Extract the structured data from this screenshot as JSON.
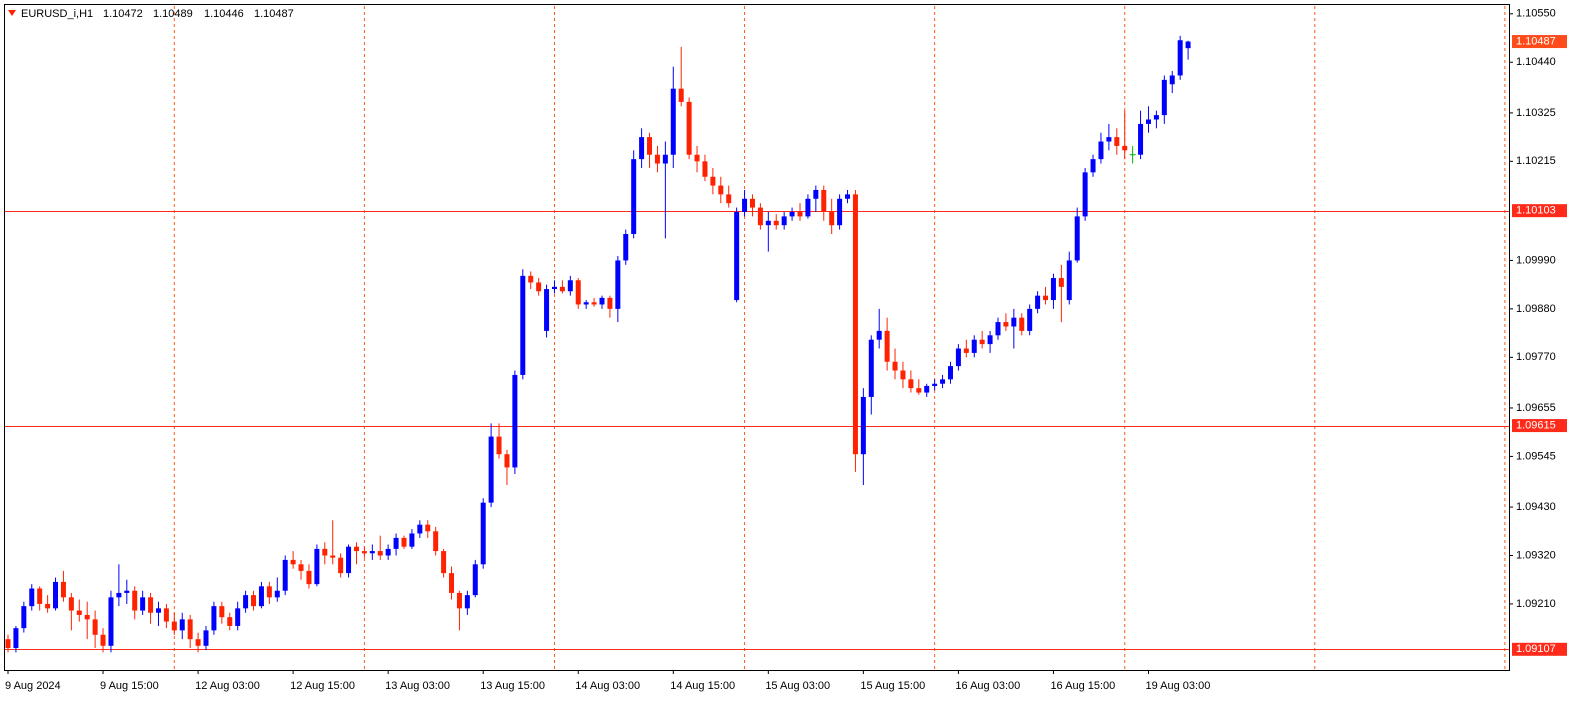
{
  "chart_data": {
    "type": "candlestick",
    "symbol": "EURUSD_i,H1",
    "categories": [
      "9 Aug 2024",
      null,
      null,
      null,
      null,
      null,
      null,
      null,
      null,
      null,
      null,
      null,
      "9 Aug 15:00",
      null,
      null,
      null,
      null,
      null,
      null,
      null,
      null,
      null,
      null,
      null,
      "12 Aug 03:00",
      null,
      null,
      null,
      null,
      null,
      null,
      null,
      null,
      null,
      null,
      null,
      "12 Aug 15:00",
      null,
      null,
      null,
      null,
      null,
      null,
      null,
      null,
      null,
      null,
      null,
      "13 Aug 03:00",
      null,
      null,
      null,
      null,
      null,
      null,
      null,
      null,
      null,
      null,
      null,
      "13 Aug 15:00",
      null,
      null,
      null,
      null,
      null,
      null,
      null,
      null,
      null,
      null,
      null,
      "14 Aug 03:00",
      null,
      null,
      null,
      null,
      null,
      null,
      null,
      null,
      null,
      null,
      null,
      "14 Aug 15:00",
      null,
      null,
      null,
      null,
      null,
      null,
      null,
      null,
      null,
      null,
      null,
      "15 Aug 03:00",
      null,
      null,
      null,
      null,
      null,
      null,
      null,
      null,
      null,
      null,
      null,
      "15 Aug 15:00",
      null,
      null,
      null,
      null,
      null,
      null,
      null,
      null,
      null,
      null,
      null,
      "16 Aug 03:00",
      null,
      null,
      null,
      null,
      null,
      null,
      null,
      null,
      null,
      null,
      null,
      "16 Aug 15:00",
      null,
      null,
      null,
      null,
      null,
      null,
      null,
      null,
      null,
      null,
      null,
      "19 Aug 03:00",
      null,
      null,
      null,
      null,
      null
    ],
    "open": [
      1.0913,
      1.0911,
      1.09155,
      1.09205,
      1.09245,
      1.0921,
      1.092,
      1.0926,
      1.09225,
      1.09195,
      1.09185,
      1.09175,
      1.0914,
      1.09115,
      1.09225,
      1.09235,
      1.0924,
      1.09195,
      1.09225,
      1.0919,
      1.092,
      1.0917,
      1.0915,
      1.09175,
      1.0913,
      1.09115,
      1.0915,
      1.09205,
      1.0918,
      1.0916,
      1.092,
      1.0923,
      1.09205,
      1.0925,
      1.09225,
      1.0924,
      1.0931,
      1.093,
      1.09285,
      1.09255,
      1.09335,
      1.0932,
      1.09315,
      1.0928,
      1.0934,
      1.0933,
      1.09325,
      1.0933,
      1.0932,
      1.09335,
      1.0936,
      1.0934,
      1.0937,
      1.0939,
      1.09375,
      1.0933,
      1.0928,
      1.09235,
      1.092,
      1.0923,
      1.093,
      1.0944,
      1.0959,
      1.0955,
      1.0952,
      1.0973,
      1.09955,
      1.0994,
      1.0983,
      1.09925,
      1.0993,
      1.0992,
      1.09945,
      1.0989,
      1.09895,
      1.0989,
      1.09905,
      1.0988,
      1.0999,
      1.1005,
      1.1022,
      1.1027,
      1.1023,
      1.1021,
      1.1023,
      1.1038,
      1.1035,
      1.1023,
      1.10215,
      1.1018,
      1.1016,
      1.1014,
      1.099,
      1.101,
      1.1013,
      1.1011,
      1.1007,
      1.1008,
      1.1007,
      1.1009,
      1.101,
      1.1009,
      1.1013,
      1.1015,
      1.101,
      1.1007,
      1.1013,
      1.1014,
      1.0955,
      1.0968,
      1.0981,
      1.0983,
      1.0976,
      1.0974,
      1.0972,
      1.097,
      1.0969,
      1.09705,
      1.0971,
      1.0972,
      1.0975,
      1.0979,
      1.0978,
      1.0981,
      1.098,
      1.0982,
      1.0985,
      1.0984,
      1.0986,
      1.0983,
      1.0988,
      1.0991,
      1.099,
      1.0995,
      1.099,
      1.0999,
      1.1009,
      1.1019,
      1.1022,
      1.1026,
      1.1027,
      1.1025,
      1.1023,
      1.1023,
      1.103,
      1.1031,
      1.1032,
      1.1039,
      1.1041,
      1.10472
    ],
    "high": [
      1.0914,
      1.0916,
      1.09215,
      1.09255,
      1.0925,
      1.0923,
      1.0927,
      1.09285,
      1.09235,
      1.0922,
      1.09215,
      1.09195,
      1.09155,
      1.0924,
      1.093,
      1.09265,
      1.0925,
      1.0924,
      1.09235,
      1.09215,
      1.0921,
      1.0919,
      1.0919,
      1.09185,
      1.09145,
      1.0916,
      1.09215,
      1.09215,
      1.0919,
      1.09215,
      1.0924,
      1.0924,
      1.0926,
      1.0926,
      1.0927,
      1.0932,
      1.0933,
      1.0931,
      1.093,
      1.09345,
      1.0935,
      1.094,
      1.09325,
      1.09345,
      1.0935,
      1.0934,
      1.09345,
      1.09365,
      1.09345,
      1.0937,
      1.09365,
      1.0938,
      1.094,
      1.094,
      1.09385,
      1.09335,
      1.09295,
      1.0924,
      1.0924,
      1.0931,
      1.0945,
      1.0962,
      1.0962,
      1.0956,
      1.0974,
      1.0997,
      1.09965,
      1.0995,
      1.09935,
      1.09945,
      1.09945,
      1.09955,
      1.0995,
      1.099,
      1.09905,
      1.0991,
      1.0991,
      1.1,
      1.1006,
      1.1024,
      1.1029,
      1.1028,
      1.1025,
      1.1026,
      1.1043,
      1.10475,
      1.1036,
      1.1025,
      1.1023,
      1.102,
      1.1018,
      1.1016,
      1.1011,
      1.1015,
      1.1014,
      1.1012,
      1.101,
      1.10095,
      1.101,
      1.1011,
      1.1012,
      1.1014,
      1.1016,
      1.1016,
      1.1013,
      1.1014,
      1.1015,
      1.1015,
      1.097,
      1.0982,
      1.0988,
      1.0986,
      1.0979,
      1.0976,
      1.0974,
      1.0972,
      1.0971,
      1.0972,
      1.0973,
      1.0976,
      1.098,
      1.0981,
      1.0982,
      1.0983,
      1.0983,
      1.0986,
      1.0987,
      1.0988,
      1.0987,
      1.0989,
      1.0992,
      1.0993,
      1.0996,
      1.0998,
      1.1001,
      1.1011,
      1.102,
      1.1023,
      1.1028,
      1.103,
      1.1029,
      1.1033,
      1.1025,
      1.1033,
      1.1034,
      1.1033,
      1.1041,
      1.1042,
      1.105,
      1.10489
    ],
    "low": [
      1.091,
      1.091,
      1.09145,
      1.09195,
      1.09195,
      1.0919,
      1.09195,
      1.09215,
      1.0915,
      1.0917,
      1.0913,
      1.0911,
      1.091,
      1.091,
      1.09205,
      1.0921,
      1.09175,
      1.09185,
      1.09165,
      1.0916,
      1.09155,
      1.0914,
      1.0913,
      1.0911,
      1.091,
      1.09105,
      1.0914,
      1.09165,
      1.0915,
      1.0915,
      1.0919,
      1.09195,
      1.092,
      1.0921,
      1.09215,
      1.0923,
      1.0929,
      1.09265,
      1.09245,
      1.0925,
      1.093,
      1.093,
      1.0927,
      1.0927,
      1.093,
      1.09315,
      1.0931,
      1.0931,
      1.0931,
      1.0932,
      1.09335,
      1.09335,
      1.0936,
      1.0936,
      1.0932,
      1.0927,
      1.0922,
      1.0915,
      1.09185,
      1.09225,
      1.0929,
      1.0943,
      1.0954,
      1.0948,
      1.09505,
      1.0972,
      1.09925,
      1.0991,
      1.09815,
      1.09915,
      1.09915,
      1.0991,
      1.0988,
      1.0988,
      1.09885,
      1.0988,
      1.0986,
      1.0985,
      1.0998,
      1.1004,
      1.102,
      1.102,
      1.1019,
      1.1004,
      1.102,
      1.1034,
      1.1022,
      1.1019,
      1.1017,
      1.1014,
      1.1012,
      1.1011,
      1.09895,
      1.1009,
      1.1009,
      1.1006,
      1.1001,
      1.1006,
      1.1006,
      1.1008,
      1.1008,
      1.10085,
      1.101,
      1.1008,
      1.1005,
      1.1006,
      1.1012,
      1.0951,
      1.0948,
      1.0964,
      1.0979,
      1.0974,
      1.0972,
      1.097,
      1.0969,
      1.09685,
      1.0968,
      1.09695,
      1.097,
      1.0971,
      1.0974,
      1.0977,
      1.0977,
      1.0979,
      1.0978,
      1.0981,
      1.0983,
      1.0979,
      1.0982,
      1.0982,
      1.0987,
      1.0989,
      1.0988,
      1.0985,
      1.0989,
      1.09985,
      1.1008,
      1.1018,
      1.1021,
      1.1024,
      1.1023,
      1.1022,
      1.1021,
      1.1022,
      1.1028,
      1.1029,
      1.103,
      1.1037,
      1.104,
      1.10446
    ],
    "close": [
      1.0911,
      1.09155,
      1.09205,
      1.09245,
      1.0921,
      1.092,
      1.0926,
      1.09225,
      1.09195,
      1.09185,
      1.09175,
      1.0914,
      1.09115,
      1.09225,
      1.09235,
      1.0924,
      1.09195,
      1.09225,
      1.0919,
      1.092,
      1.0917,
      1.0915,
      1.09175,
      1.0913,
      1.09115,
      1.0915,
      1.09205,
      1.0918,
      1.0916,
      1.092,
      1.0923,
      1.09205,
      1.0925,
      1.09225,
      1.0924,
      1.0931,
      1.093,
      1.09285,
      1.09255,
      1.09335,
      1.0932,
      1.09315,
      1.0928,
      1.0934,
      1.0933,
      1.09325,
      1.0933,
      1.0932,
      1.09335,
      1.0936,
      1.0934,
      1.0937,
      1.0939,
      1.09375,
      1.0933,
      1.0928,
      1.09235,
      1.092,
      1.0923,
      1.093,
      1.0944,
      1.0959,
      1.0955,
      1.0952,
      1.0973,
      1.09955,
      1.0994,
      1.0992,
      1.09925,
      1.0993,
      1.0992,
      1.09945,
      1.0989,
      1.09895,
      1.0989,
      1.09905,
      1.0988,
      1.0999,
      1.1005,
      1.1022,
      1.1027,
      1.1023,
      1.1021,
      1.1023,
      1.1038,
      1.1035,
      1.1023,
      1.10215,
      1.1018,
      1.1016,
      1.1014,
      1.1012,
      1.101,
      1.1013,
      1.1011,
      1.1007,
      1.1008,
      1.1007,
      1.1009,
      1.101,
      1.1009,
      1.1013,
      1.1015,
      1.101,
      1.1007,
      1.1013,
      1.1014,
      1.0955,
      1.0968,
      1.0981,
      1.0983,
      1.0976,
      1.0974,
      1.0972,
      1.097,
      1.0969,
      1.09705,
      1.0971,
      1.0972,
      1.0975,
      1.0979,
      1.0978,
      1.0981,
      1.098,
      1.0982,
      1.0985,
      1.0984,
      1.0986,
      1.0983,
      1.0988,
      1.0991,
      1.099,
      1.0995,
      1.0993,
      1.0999,
      1.1009,
      1.1019,
      1.1022,
      1.1026,
      1.1027,
      1.1025,
      1.1024,
      1.1023,
      1.103,
      1.1031,
      1.1032,
      1.104,
      1.1041,
      1.1049,
      1.10487
    ],
    "up_color": "#0000ff",
    "down_color": "#ff2200",
    "doji_color": "#00b000",
    "ylim": [
      1.0906,
      1.1057
    ],
    "yticks": [
      {
        "value": 1.1055,
        "label": "1.10550"
      },
      {
        "value": 1.1044,
        "label": "1.10440"
      },
      1.10325,
      1.10215,
      {
        "value": 1.0999,
        "label": "1.09990"
      },
      {
        "value": 1.0988,
        "label": "1.09880"
      },
      {
        "value": 1.0977,
        "label": "1.09770"
      },
      1.09655,
      1.09545,
      {
        "value": 1.0943,
        "label": "1.09430"
      },
      {
        "value": 1.0932,
        "label": "1.09320"
      },
      {
        "value": 1.0921,
        "label": "1.09210"
      }
    ],
    "hlines": [
      1.10103,
      1.09615,
      1.09107
    ],
    "hline_color": "#ff2a1a",
    "price_label_color": "#ff4a1a",
    "period_separators": true,
    "separator_color": "#ff5a1a"
  }
}
